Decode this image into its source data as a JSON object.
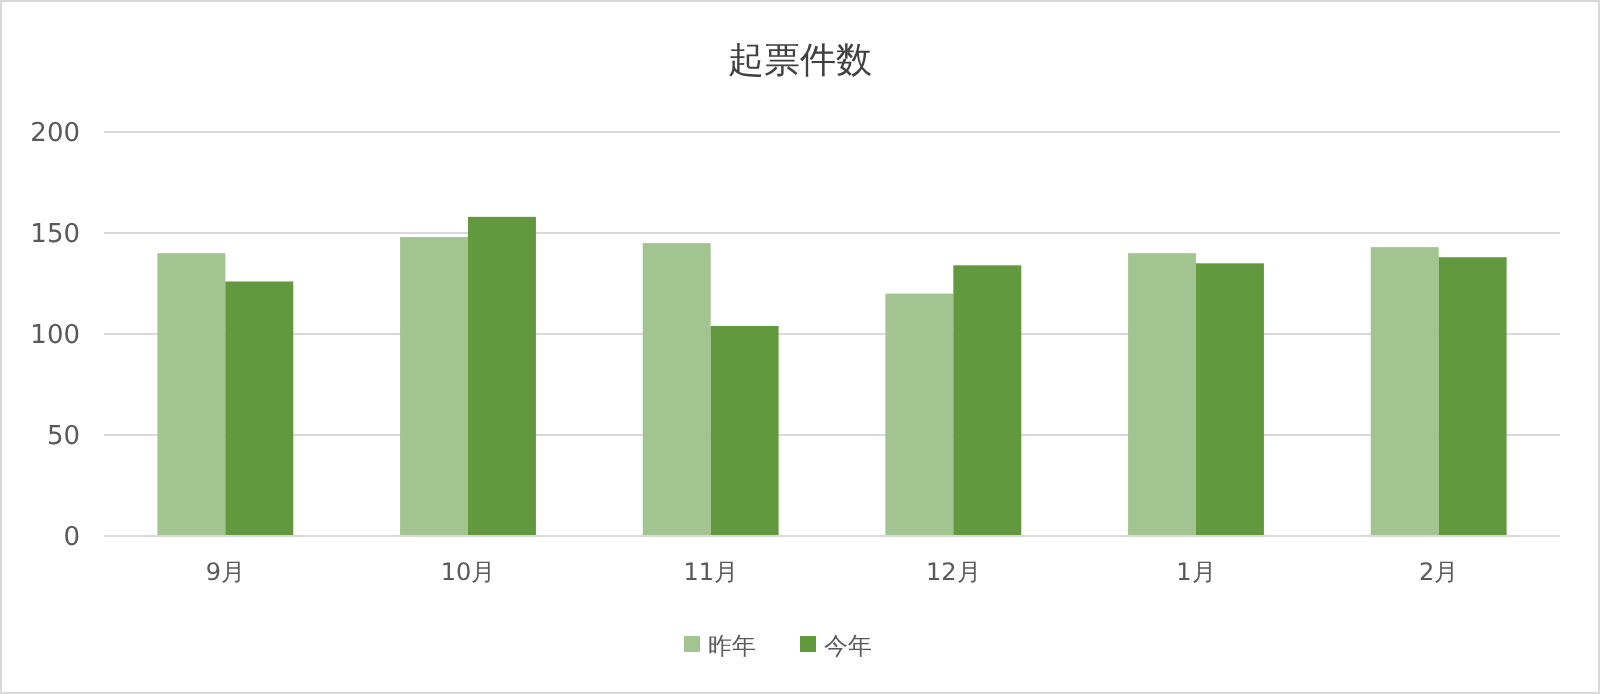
{
  "chart_data": {
    "type": "bar",
    "title": "起票件数",
    "categories": [
      "9月",
      "10月",
      "11月",
      "12月",
      "1月",
      "2月"
    ],
    "series": [
      {
        "name": "昨年",
        "color": "#a2c490",
        "values": [
          140,
          148,
          145,
          120,
          140,
          143
        ]
      },
      {
        "name": "今年",
        "color": "#62993e",
        "values": [
          126,
          158,
          104,
          134,
          135,
          138
        ]
      }
    ],
    "ylim": [
      0,
      200
    ],
    "yticks": [
      0,
      50,
      100,
      150,
      200
    ],
    "grid": "y",
    "legend": "bottom"
  }
}
